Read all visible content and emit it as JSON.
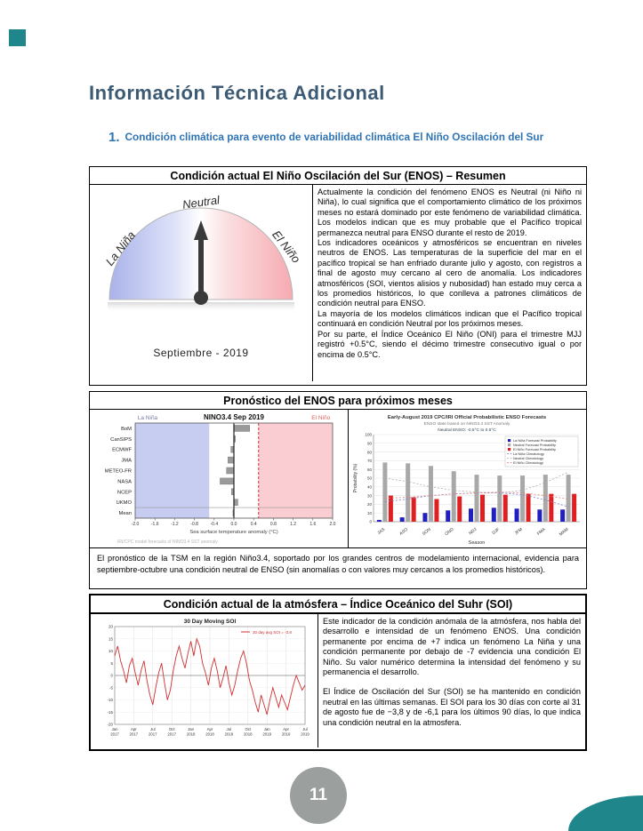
{
  "page": {
    "title": "Información Técnica Adicional",
    "section_number": "1.",
    "section_title": "Condición climática para evento de variabilidad climática El Niño Oscilación del Sur",
    "page_number": "11",
    "colors": {
      "accent_teal": "#1f868c",
      "heading_blue": "#2e74b5",
      "title_slate": "#3c5a73",
      "badge_gray": "#9b9f9e"
    }
  },
  "box1": {
    "header": "Condición actual El Niño Oscilación del Sur (ENOS) – Resumen",
    "gauge": {
      "top_label": "Neutral",
      "left_label": "La Niña",
      "right_label": "El Niño",
      "caption": "Septiembre  - 2019"
    },
    "paragraphs": [
      "Actualmente la condición del fenómeno ENOS es Neutral (ni Niño ni Niña), lo cual significa que el comportamiento climático de los próximos meses no estará dominado por este fenómeno de variabilidad climática. Los modelos indican que es muy probable que el Pacífico tropical permanezca neutral para ENSO durante el resto de 2019.",
      "Los indicadores oceánicos y atmosféricos se encuentran en niveles neutros de ENOS. Las temperaturas de la superficie del mar en el pacífico tropical se han enfriado durante julio y agosto, con registros a final de agosto muy cercano al cero de anomalía. Los indicadores atmosféricos (SOI, vientos alisios y nubosidad) han estado muy cerca a los promedios históricos, lo que conlleva a patrones climáticos de condición neutral para ENSO.",
      "La mayoría de los modelos climáticos indican que el Pacífico tropical continuará en condición Neutral por los próximos meses.",
      "Por su parte, el Índice Oceánico El Niño (ONI) para el trimestre MJJ registró +0.5°C, siendo el décimo trimestre consecutivo igual o por encima de 0.5°C."
    ]
  },
  "box2": {
    "header": "Pronóstico del ENOS para próximos meses",
    "caption": "El pronóstico de la TSM en la región Niño3.4, soportado por los grandes centros de modelamiento internacional, evidencia para septiembre-octubre una condición neutral de ENSO (sin anomalías o con valores muy cercanos a los promedios históricos)."
  },
  "box3": {
    "header": "Condición actual de la atmósfera – Índice Oceánico del Suhr (SOI)",
    "paragraphs": [
      "Este indicador de la condición anómala de la atmósfera, nos habla del desarrollo e intensidad de un fenómeno ENOS. Una condición permanente por encima de +7 indica un fenómeno La Niña y una condición permanente por debajo de -7 evidencia una condición El Niño. Su valor numérico determina la intensidad del fenómeno y su permanencia el desarrollo.",
      "El Índice de Oscilación del Sur (SOI) se ha mantenido en condición neutral en las últimas semanas. El SOI para los 30 días con corte al 31 de agosto fue de −3,8 y de -6,1 para los últimos 90 días, lo que indica una condición neutral en la atmosfera."
    ]
  },
  "chart_data": [
    {
      "id": "nino34_models",
      "type": "bar",
      "orientation": "horizontal",
      "title": "NINO3.4",
      "subtitle": "Sep 2019",
      "left_region_label": "La Niña",
      "right_region_label": "El Niño",
      "categories": [
        "BoM",
        "CanSIPS",
        "ECMWF",
        "JMA",
        "METEO-FR",
        "NASA",
        "NCEP",
        "UKMO",
        "Mean"
      ],
      "values": [
        0.32,
        0.03,
        -0.06,
        -0.12,
        -0.15,
        -0.28,
        -0.05,
        0.08,
        -0.02
      ],
      "xlabel": "Sea surface temperature anomaly (°C)",
      "xlim": [
        -2,
        2
      ],
      "xticks": [
        -2,
        -1.6,
        -1.2,
        -0.8,
        -0.4,
        0,
        0.4,
        0.8,
        1.2,
        1.6,
        2
      ],
      "nina_band": [
        -2,
        -0.5
      ],
      "nino_band": [
        0.5,
        2
      ],
      "band_colors": {
        "nina": "#c7ccf1",
        "nino": "#f9cdd2"
      },
      "bar_color": "#9a9a9a",
      "source_note": "IRI/CPC model forecasts of NINO3.4 SST anomaly"
    },
    {
      "id": "cpc_probabilities",
      "type": "bar",
      "title": "Early-August 2019 CPC/IRI Official Probabilistic ENSO Forecasts",
      "subtitle": "ENSO state based on NINO3.4 SST Anomaly",
      "subtitle2": "Neutral ENSO: -0.5°C to 0.5°C",
      "xlabel": "Season",
      "ylabel": "Probability (%)",
      "ylim": [
        0,
        100
      ],
      "categories": [
        "JAS",
        "ASO",
        "SON",
        "OND",
        "NDJ",
        "DJF",
        "JFM",
        "FMA",
        "MAM"
      ],
      "series": [
        {
          "name": "La Niña Forecast Probability",
          "color": "#2020c0",
          "values": [
            2,
            5,
            10,
            13,
            15,
            16,
            15,
            14,
            14
          ]
        },
        {
          "name": "Neutral Forecast Probability",
          "color": "#a8a8a8",
          "values": [
            68,
            67,
            64,
            58,
            54,
            53,
            53,
            54,
            54
          ]
        },
        {
          "name": "El Niño Forecast Probability",
          "color": "#e02020",
          "values": [
            30,
            28,
            26,
            29,
            31,
            31,
            32,
            32,
            32
          ]
        }
      ],
      "clim_series": [
        {
          "name": "La Niña Climatology",
          "color": "#8080d0",
          "values": [
            23,
            26,
            30,
            32,
            33,
            33,
            31,
            25,
            17
          ]
        },
        {
          "name": "Neutral Climatology",
          "color": "#b0b0b0",
          "values": [
            50,
            46,
            40,
            36,
            34,
            33,
            36,
            45,
            57
          ]
        },
        {
          "name": "El Niño Climatology",
          "color": "#e08080",
          "values": [
            27,
            28,
            30,
            32,
            33,
            34,
            33,
            30,
            26
          ]
        }
      ],
      "legend_position": "top-right",
      "grid": true
    },
    {
      "id": "soi_line",
      "type": "line",
      "title": "30 Day Moving SOI",
      "legend": "30 day avg SOI = -3.8",
      "line_color": "#d03030",
      "ylim": [
        -20,
        20
      ],
      "yticks": [
        20,
        15,
        10,
        5,
        0,
        -5,
        -10,
        -15,
        -20
      ],
      "xticklabels": [
        [
          "Jan",
          "2017"
        ],
        [
          "Apr",
          "2017"
        ],
        [
          "Jul",
          "2017"
        ],
        [
          "Oct",
          "2017"
        ],
        [
          "Jan",
          "2018"
        ],
        [
          "Apr",
          "2018"
        ],
        [
          "Jul",
          "2018"
        ],
        [
          "Oct",
          "2018"
        ],
        [
          "Jan",
          "2019"
        ],
        [
          "Apr",
          "2019"
        ],
        [
          "Jul",
          "2019"
        ]
      ],
      "values": [
        8,
        12,
        6,
        2,
        -3,
        4,
        7,
        1,
        -4,
        2,
        6,
        -2,
        -8,
        -12,
        -5,
        1,
        5,
        -3,
        -10,
        -6,
        2,
        8,
        12,
        7,
        3,
        9,
        14,
        8,
        15,
        12,
        5,
        1,
        -4,
        3,
        7,
        2,
        -5,
        -1,
        4,
        -3,
        -8,
        -4,
        2,
        7,
        10,
        5,
        -2,
        -6,
        -11,
        -15,
        -8,
        -12,
        -16,
        -10,
        -5,
        -9,
        -13,
        -8,
        -11,
        -14,
        -9,
        -4,
        0,
        -3,
        -6,
        -4
      ]
    }
  ]
}
